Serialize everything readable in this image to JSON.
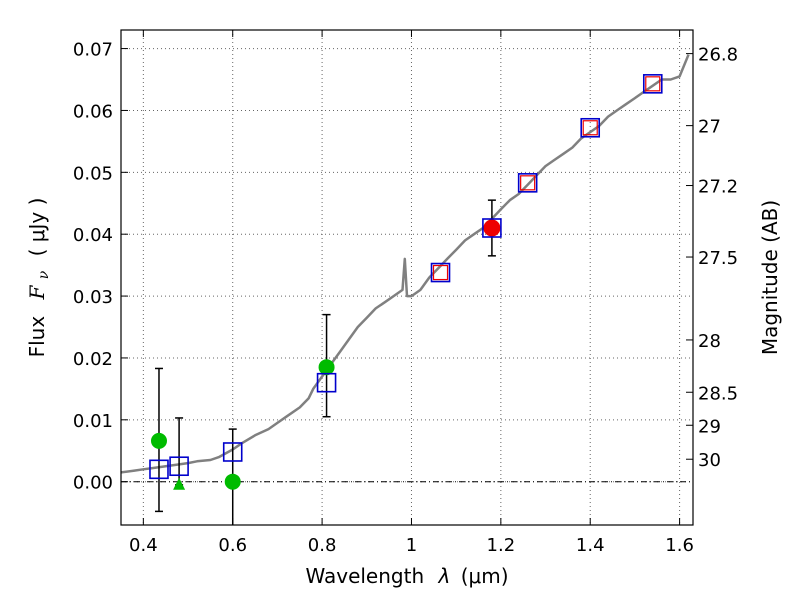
{
  "chart_data": {
    "type": "scatter",
    "xlabel_text": "Wavelength",
    "xlabel_symbol": "λ",
    "xlabel_unit": "(μm)",
    "ylabel_text": "Flux",
    "ylabel_symbol": "F",
    "ylabel_sub": "ν",
    "ylabel_unit": "( μJy )",
    "y2label": "Magnitude (AB)",
    "xlim": [
      0.35,
      1.63
    ],
    "ylim": [
      -0.007,
      0.073
    ],
    "x_ticks": [
      0.4,
      0.6,
      0.8,
      1.0,
      1.2,
      1.4,
      1.6
    ],
    "x_tick_labels": [
      "0.4",
      "0.6",
      "0.8",
      "1",
      "1.2",
      "1.4",
      "1.6"
    ],
    "y_ticks": [
      0.0,
      0.01,
      0.02,
      0.03,
      0.04,
      0.05,
      0.06,
      0.07
    ],
    "y_tick_labels": [
      "0.00",
      "0.01",
      "0.02",
      "0.03",
      "0.04",
      "0.05",
      "0.06",
      "0.07"
    ],
    "mag_ticks": [
      {
        "mag": 26.8,
        "label": "26.8"
      },
      {
        "mag": 27.0,
        "label": "27"
      },
      {
        "mag": 27.2,
        "label": "27.2"
      },
      {
        "mag": 27.5,
        "label": "27.5"
      },
      {
        "mag": 28.0,
        "label": "28"
      },
      {
        "mag": 28.5,
        "label": "28.5"
      },
      {
        "mag": 29.0,
        "label": "29"
      },
      {
        "mag": 30.0,
        "label": "30"
      }
    ],
    "model_spectrum": {
      "color": "#808080",
      "x": [
        0.35,
        0.38,
        0.4,
        0.42,
        0.45,
        0.48,
        0.5,
        0.52,
        0.55,
        0.57,
        0.6,
        0.62,
        0.65,
        0.68,
        0.7,
        0.72,
        0.75,
        0.77,
        0.78,
        0.8,
        0.82,
        0.84,
        0.86,
        0.88,
        0.9,
        0.92,
        0.94,
        0.96,
        0.98,
        0.985,
        0.99,
        1.0,
        1.02,
        1.04,
        1.06,
        1.08,
        1.1,
        1.12,
        1.14,
        1.16,
        1.18,
        1.2,
        1.22,
        1.24,
        1.26,
        1.28,
        1.3,
        1.32,
        1.34,
        1.36,
        1.38,
        1.4,
        1.42,
        1.44,
        1.46,
        1.48,
        1.5,
        1.52,
        1.54,
        1.56,
        1.58,
        1.6,
        1.62
      ],
      "y": [
        0.0015,
        0.0018,
        0.002,
        0.0022,
        0.0025,
        0.0028,
        0.003,
        0.0033,
        0.0035,
        0.004,
        0.0052,
        0.0062,
        0.0075,
        0.0085,
        0.0095,
        0.0105,
        0.012,
        0.0135,
        0.015,
        0.017,
        0.019,
        0.021,
        0.023,
        0.025,
        0.0265,
        0.028,
        0.029,
        0.03,
        0.031,
        0.036,
        0.03,
        0.03,
        0.031,
        0.033,
        0.0345,
        0.036,
        0.0375,
        0.039,
        0.04,
        0.041,
        0.0425,
        0.044,
        0.0455,
        0.0465,
        0.048,
        0.0495,
        0.051,
        0.052,
        0.053,
        0.054,
        0.0555,
        0.0565,
        0.0575,
        0.059,
        0.06,
        0.061,
        0.062,
        0.063,
        0.064,
        0.065,
        0.065,
        0.0655,
        0.069
      ]
    },
    "model_photometry": {
      "name": "model bands (blue squares)",
      "color": "#0000cc",
      "points": [
        {
          "x": 0.435,
          "y": 0.002
        },
        {
          "x": 0.48,
          "y": 0.0025
        },
        {
          "x": 0.6,
          "y": 0.0048
        },
        {
          "x": 0.81,
          "y": 0.016
        },
        {
          "x": 1.065,
          "y": 0.0338
        },
        {
          "x": 1.18,
          "y": 0.041
        },
        {
          "x": 1.26,
          "y": 0.0483
        },
        {
          "x": 1.4,
          "y": 0.0572
        },
        {
          "x": 1.54,
          "y": 0.0643
        }
      ]
    },
    "observed_ir": {
      "name": "observed IR (red)",
      "color": "#ee0000",
      "points": [
        {
          "x": 1.065,
          "y": 0.0338,
          "marker": "square"
        },
        {
          "x": 1.26,
          "y": 0.0483,
          "marker": "square"
        },
        {
          "x": 1.4,
          "y": 0.0572,
          "marker": "square"
        },
        {
          "x": 1.54,
          "y": 0.0643,
          "marker": "square"
        },
        {
          "x": 1.18,
          "y": 0.041,
          "marker": "circle",
          "yerr_low": 0.0365,
          "yerr_high": 0.0455
        }
      ]
    },
    "observed_optical": {
      "name": "observed optical (green)",
      "color": "#00bb00",
      "points": [
        {
          "x": 0.435,
          "y": 0.0066,
          "marker": "circle",
          "yerr_low": -0.0048,
          "yerr_high": 0.0183
        },
        {
          "x": 0.48,
          "y": -0.0005,
          "marker": "triangle",
          "yerr_low": -0.0005,
          "yerr_high": 0.0103
        },
        {
          "x": 0.6,
          "y": 0.0,
          "marker": "circle",
          "yerr_low": -0.007,
          "yerr_high": 0.0085
        },
        {
          "x": 0.81,
          "y": 0.0185,
          "marker": "circle",
          "yerr_low": 0.0105,
          "yerr_high": 0.027
        }
      ]
    }
  }
}
